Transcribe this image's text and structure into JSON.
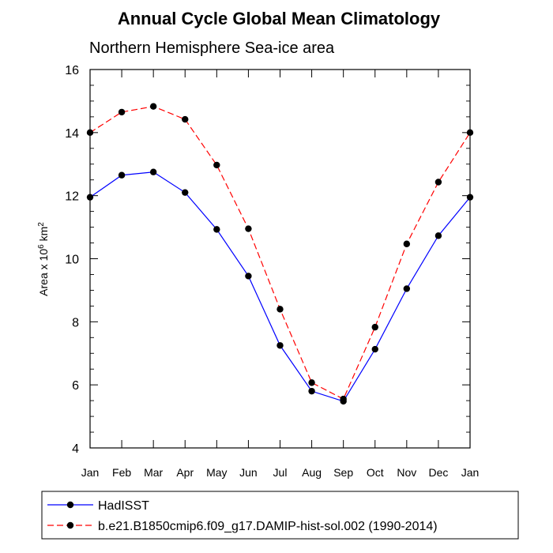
{
  "colors": {
    "series_1": "#0000ff",
    "series_2": "#ff0000",
    "marker": "#000000",
    "axis": "#000000",
    "background": "#ffffff"
  },
  "chart_data": {
    "type": "line",
    "title": "Annual Cycle Global Mean Climatology",
    "subtitle": "Northern Hemisphere Sea-ice area",
    "xlabel": "",
    "ylabel": {
      "prefix": "Area x 10",
      "exp1": "6",
      "mid": " km",
      "exp2": "2"
    },
    "categories": [
      "Jan",
      "Feb",
      "Mar",
      "Apr",
      "May",
      "Jun",
      "Jul",
      "Aug",
      "Sep",
      "Oct",
      "Nov",
      "Dec",
      "Jan"
    ],
    "ylim": [
      4,
      16
    ],
    "yticks": [
      4,
      6,
      8,
      10,
      12,
      14,
      16
    ],
    "grid": false,
    "legend_position": "bottom",
    "series": [
      {
        "name": "HadISST",
        "line_style": "solid",
        "color": "#0000ff",
        "values": [
          11.95,
          12.65,
          12.75,
          12.1,
          10.93,
          9.45,
          7.25,
          5.8,
          5.48,
          7.13,
          9.05,
          10.73,
          11.95
        ]
      },
      {
        "name": "b.e21.B1850cmip6.f09_g17.DAMIP-hist-sol.002 (1990-2014)",
        "line_style": "dashed",
        "color": "#ff0000",
        "values": [
          14.0,
          14.65,
          14.83,
          14.42,
          12.97,
          10.95,
          8.4,
          6.07,
          5.55,
          7.83,
          10.47,
          12.43,
          14.0
        ]
      }
    ]
  }
}
